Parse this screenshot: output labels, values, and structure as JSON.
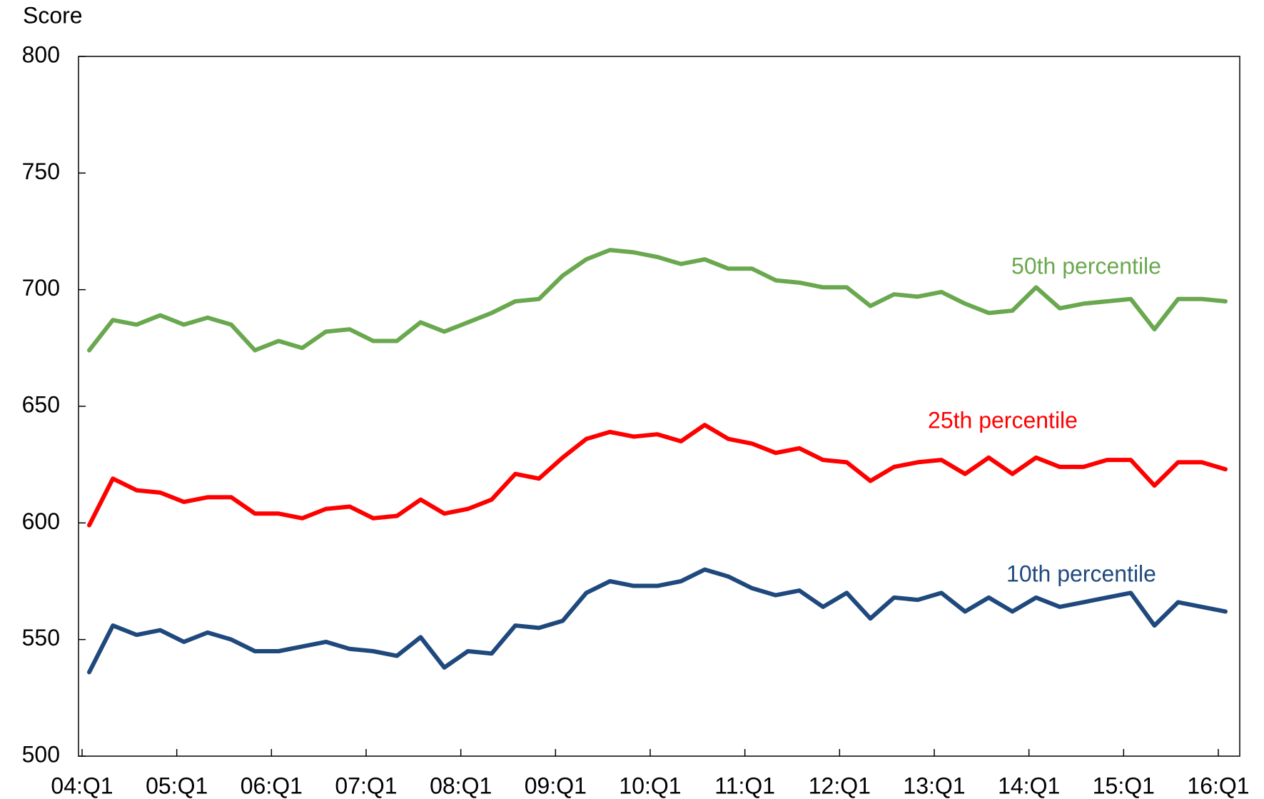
{
  "chart_data": {
    "type": "line",
    "y_label": "Score",
    "categories": [
      "04:Q1",
      null,
      null,
      null,
      "05:Q1",
      null,
      null,
      null,
      "06:Q1",
      null,
      null,
      null,
      "07:Q1",
      null,
      null,
      null,
      "08:Q1",
      null,
      null,
      null,
      "09:Q1",
      null,
      null,
      null,
      "10:Q1",
      null,
      null,
      null,
      "11:Q1",
      null,
      null,
      null,
      "12:Q1",
      null,
      null,
      null,
      "13:Q1",
      null,
      null,
      null,
      "14:Q1",
      null,
      null,
      null,
      "15:Q1",
      null,
      null,
      null,
      "16:Q1"
    ],
    "ylim": [
      500,
      800
    ],
    "yticks": [
      500,
      550,
      600,
      650,
      700,
      750,
      800
    ],
    "grid": false,
    "series": [
      {
        "name": "50th percentile",
        "color": "#6aa84f",
        "values": [
          674,
          687,
          685,
          689,
          685,
          688,
          685,
          674,
          678,
          675,
          682,
          683,
          678,
          678,
          686,
          682,
          686,
          690,
          695,
          696,
          706,
          713,
          717,
          716,
          714,
          711,
          713,
          709,
          709,
          704,
          703,
          701,
          701,
          693,
          698,
          697,
          699,
          694,
          690,
          691,
          701,
          692,
          694,
          695,
          696,
          683,
          696,
          696,
          695
        ]
      },
      {
        "name": "25th percentile",
        "color": "#ff0000",
        "values": [
          599,
          619,
          614,
          613,
          609,
          611,
          611,
          604,
          604,
          602,
          606,
          607,
          602,
          603,
          610,
          604,
          606,
          610,
          621,
          619,
          628,
          636,
          639,
          637,
          638,
          635,
          642,
          636,
          634,
          630,
          632,
          627,
          626,
          618,
          624,
          626,
          627,
          621,
          628,
          621,
          628,
          624,
          624,
          627,
          627,
          616,
          626,
          626,
          623
        ]
      },
      {
        "name": "10th percentile",
        "color": "#1f497d",
        "values": [
          536,
          556,
          552,
          554,
          549,
          553,
          550,
          545,
          545,
          547,
          549,
          546,
          545,
          543,
          551,
          538,
          545,
          544,
          556,
          555,
          558,
          570,
          575,
          573,
          573,
          575,
          580,
          577,
          572,
          569,
          571,
          564,
          570,
          559,
          568,
          567,
          570,
          562,
          568,
          562,
          568,
          564,
          566,
          568,
          570,
          556,
          566,
          564,
          562
        ]
      }
    ]
  }
}
